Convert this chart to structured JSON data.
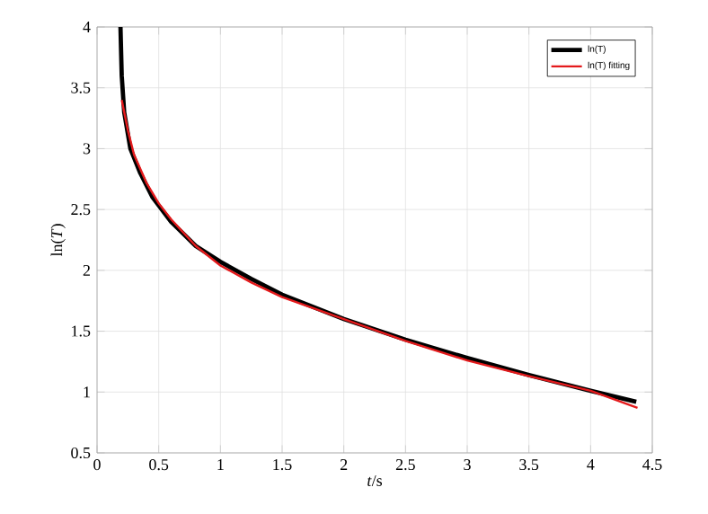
{
  "chart_data": {
    "type": "line",
    "xlabel": "*t*/s",
    "ylabel": "ln(*T*)",
    "xlim": [
      0,
      4.5
    ],
    "ylim": [
      0.5,
      4
    ],
    "xticks": [
      0,
      0.5,
      1,
      1.5,
      2,
      2.5,
      3,
      3.5,
      4,
      4.5
    ],
    "yticks": [
      0.5,
      1,
      1.5,
      2,
      2.5,
      3,
      3.5,
      4
    ],
    "grid": true,
    "legend": "top right",
    "marker": "none",
    "line_style": "solid",
    "series": [
      {
        "name": "ln(T)",
        "color": "#000000",
        "x": [
          0.19,
          0.2,
          0.22,
          0.27,
          0.35,
          0.45,
          0.6,
          0.8,
          1.0,
          1.25,
          1.5,
          2,
          2.5,
          3,
          3.5,
          4,
          4.37
        ],
        "values": [
          4.0,
          3.6,
          3.3,
          3.0,
          2.8,
          2.6,
          2.4,
          2.2,
          2.07,
          1.93,
          1.8,
          1.6,
          1.43,
          1.28,
          1.14,
          1.01,
          0.92
        ]
      },
      {
        "name": "ln(T) fitting",
        "color": "#e41a1c",
        "x": [
          0.2,
          0.25,
          0.3,
          0.4,
          0.5,
          0.6,
          0.8,
          1.0,
          1.25,
          1.5,
          2,
          2.5,
          3,
          3.5,
          4,
          4.38
        ],
        "values": [
          3.4,
          3.15,
          2.95,
          2.72,
          2.55,
          2.42,
          2.2,
          2.04,
          1.9,
          1.78,
          1.6,
          1.42,
          1.26,
          1.13,
          1.01,
          0.87
        ]
      }
    ]
  }
}
